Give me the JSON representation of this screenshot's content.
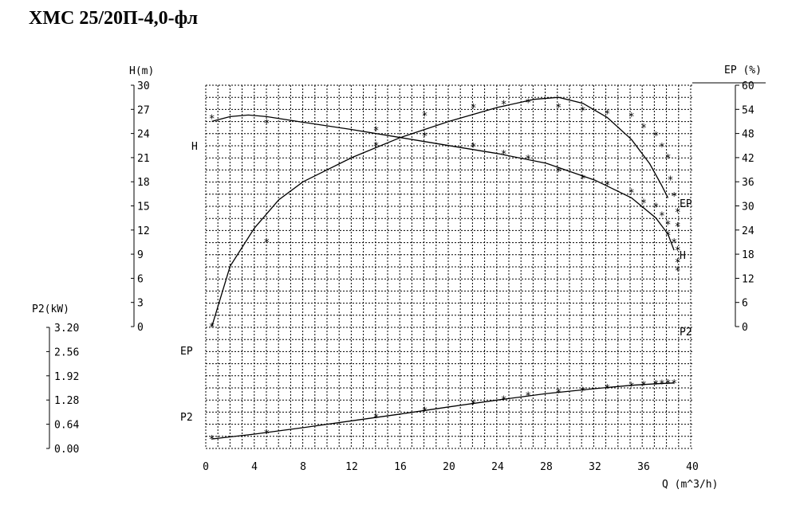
{
  "title": "ХМС 25/20П-4,0-фл",
  "chart_data": {
    "type": "line",
    "title": "ХМС 25/20П-4,0-фл",
    "x": {
      "label": "Q (m^3/h)",
      "min": 0,
      "max": 40,
      "ticks": [
        "0",
        "4",
        "8",
        "12",
        "16",
        "20",
        "24",
        "28",
        "32",
        "36",
        "40"
      ]
    },
    "axes": {
      "H": {
        "label": "H(m)",
        "min": 0,
        "max": 30,
        "ticks": [
          "0",
          "3",
          "6",
          "9",
          "12",
          "15",
          "18",
          "21",
          "24",
          "27",
          "30"
        ]
      },
      "EP": {
        "label": "EP (%)",
        "min": 0,
        "max": 60,
        "ticks": [
          "0",
          "6",
          "12",
          "18",
          "24",
          "30",
          "36",
          "42",
          "48",
          "54",
          "60"
        ]
      },
      "P2": {
        "label": "P2(kW)",
        "min": 0,
        "max": 3.2,
        "ticks": [
          "0.00",
          "0.64",
          "1.28",
          "1.92",
          "2.56",
          "3.20"
        ]
      }
    },
    "grid": true,
    "curve_labels": {
      "H_left": "H",
      "H_right": "H",
      "EP_left": "EP",
      "EP_right": "EP",
      "P2_left": "P2",
      "P2_right": "P2"
    },
    "series": [
      {
        "name": "H",
        "axis": "H",
        "curve": [
          [
            0.5,
            25.5
          ],
          [
            2,
            26.1
          ],
          [
            3.5,
            26.3
          ],
          [
            5,
            26.1
          ],
          [
            8,
            25.4
          ],
          [
            12,
            24.5
          ],
          [
            16,
            23.5
          ],
          [
            20,
            22.5
          ],
          [
            24,
            21.5
          ],
          [
            28,
            20.3
          ],
          [
            32,
            18.2
          ],
          [
            35,
            16
          ],
          [
            37,
            13.5
          ],
          [
            38,
            11.5
          ],
          [
            38.5,
            9.5
          ]
        ],
        "measured": [
          [
            0.5,
            25.9
          ],
          [
            5,
            25.3
          ],
          [
            14,
            24.4
          ],
          [
            18,
            23.7
          ],
          [
            22,
            22.4
          ],
          [
            24.5,
            21.5
          ],
          [
            26.5,
            20.9
          ],
          [
            29,
            19.3
          ],
          [
            31,
            18.4
          ],
          [
            33,
            17.6
          ],
          [
            35,
            16.7
          ],
          [
            36,
            15.4
          ],
          [
            37,
            14.9
          ],
          [
            37.5,
            13.8
          ],
          [
            38,
            12.7
          ],
          [
            38,
            11.4
          ],
          [
            38.5,
            10.5
          ]
        ]
      },
      {
        "name": "EP",
        "axis": "EP",
        "curve": [
          [
            0.5,
            0
          ],
          [
            2,
            15
          ],
          [
            4,
            24.5
          ],
          [
            6,
            31.5
          ],
          [
            8,
            36
          ],
          [
            12,
            42
          ],
          [
            16,
            47
          ],
          [
            20,
            51
          ],
          [
            24,
            54.5
          ],
          [
            27,
            56.5
          ],
          [
            29,
            57
          ],
          [
            31,
            55.5
          ],
          [
            33,
            52
          ],
          [
            35,
            46.5
          ],
          [
            36.5,
            40.5
          ],
          [
            37.5,
            35
          ],
          [
            38,
            32
          ]
        ],
        "measured": [
          [
            0.5,
            0
          ],
          [
            5,
            21
          ],
          [
            14,
            45
          ],
          [
            18,
            52.5
          ],
          [
            22,
            54.5
          ],
          [
            24.5,
            55.3
          ],
          [
            26.5,
            55.7
          ],
          [
            29,
            54.6
          ],
          [
            31,
            53.8
          ],
          [
            33,
            53
          ],
          [
            35,
            52.3
          ],
          [
            36,
            49.5
          ],
          [
            37,
            47.5
          ],
          [
            37.5,
            44.8
          ],
          [
            38,
            42
          ],
          [
            38.2,
            36.5
          ],
          [
            38.5,
            32.5
          ],
          [
            38.8,
            28.5
          ],
          [
            38.8,
            25
          ],
          [
            38.8,
            19
          ],
          [
            38.8,
            16
          ],
          [
            38.8,
            14
          ]
        ]
      },
      {
        "name": "P2",
        "axis": "P2",
        "curve": [
          [
            0.5,
            0.25
          ],
          [
            4,
            0.38
          ],
          [
            8,
            0.55
          ],
          [
            12,
            0.73
          ],
          [
            16,
            0.91
          ],
          [
            20,
            1.1
          ],
          [
            24,
            1.28
          ],
          [
            28,
            1.45
          ],
          [
            32,
            1.58
          ],
          [
            35,
            1.67
          ],
          [
            37,
            1.71
          ],
          [
            38.5,
            1.73
          ]
        ],
        "measured": [
          [
            0.5,
            0.25
          ],
          [
            5,
            0.4
          ],
          [
            14,
            0.82
          ],
          [
            18,
            1.0
          ],
          [
            22,
            1.18
          ],
          [
            24.5,
            1.3
          ],
          [
            26.5,
            1.4
          ],
          [
            29,
            1.48
          ],
          [
            31,
            1.53
          ],
          [
            33,
            1.6
          ],
          [
            35,
            1.65
          ],
          [
            36,
            1.68
          ],
          [
            37,
            1.71
          ],
          [
            37.5,
            1.72
          ],
          [
            38,
            1.73
          ],
          [
            38.5,
            1.73
          ]
        ]
      }
    ]
  }
}
